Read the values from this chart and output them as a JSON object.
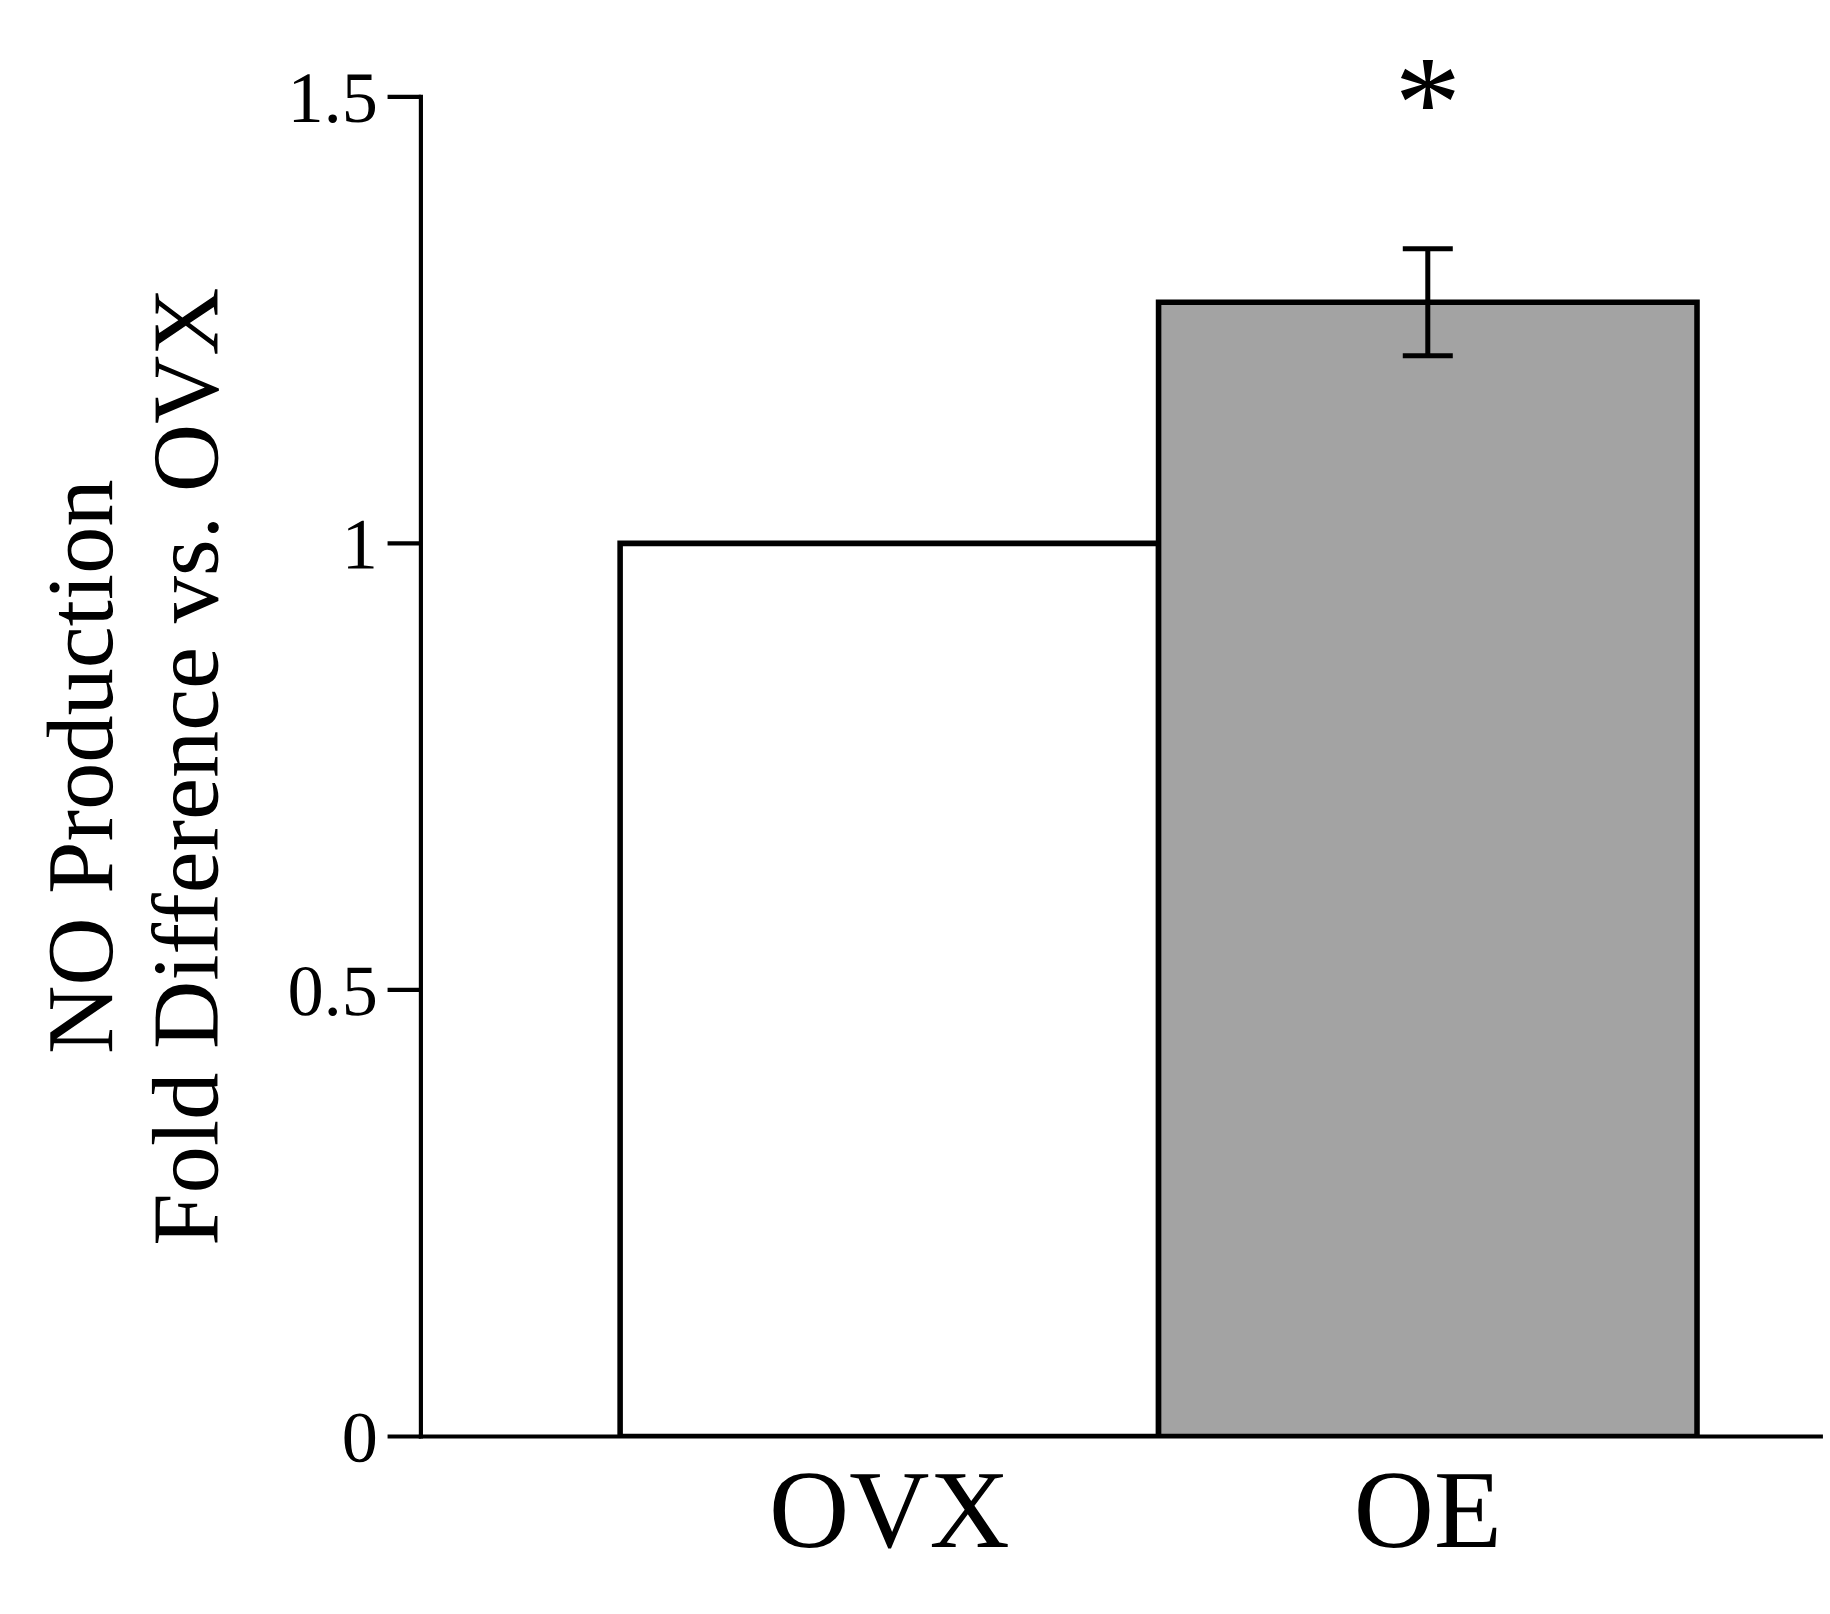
{
  "chart_data": {
    "type": "bar",
    "ylabel": "NO Production\nFold Difference vs. OVX",
    "categories": [
      "OVX",
      "OE"
    ],
    "values": [
      1.0,
      1.27
    ],
    "colors": [
      "#ffffff",
      "#a3a3a3"
    ],
    "errors": [
      null,
      0.06
    ],
    "ylim": [
      0,
      1.5
    ],
    "yticks": [
      0,
      0.5,
      1,
      1.5
    ],
    "annotations": [
      "*"
    ],
    "grid": false
  }
}
